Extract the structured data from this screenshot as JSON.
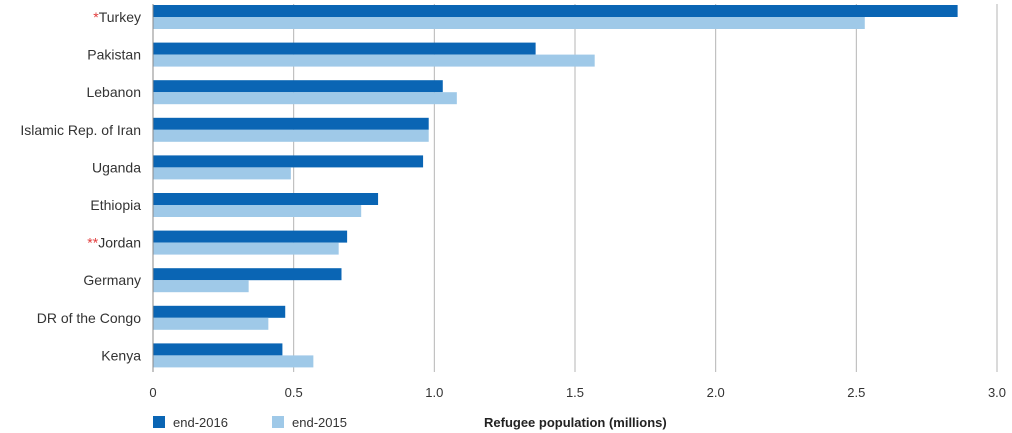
{
  "chart_data": {
    "type": "bar",
    "orientation": "horizontal",
    "categories": [
      {
        "mark": "*",
        "name": "Turkey"
      },
      {
        "mark": "",
        "name": "Pakistan"
      },
      {
        "mark": "",
        "name": "Lebanon"
      },
      {
        "mark": "",
        "name": "Islamic Rep. of Iran"
      },
      {
        "mark": "",
        "name": "Uganda"
      },
      {
        "mark": "",
        "name": "Ethiopia"
      },
      {
        "mark": "**",
        "name": "Jordan"
      },
      {
        "mark": "",
        "name": "Germany"
      },
      {
        "mark": "",
        "name": "DR of the Congo"
      },
      {
        "mark": "",
        "name": "Kenya"
      }
    ],
    "series": [
      {
        "name": "end-2016",
        "color": "#0a65b4",
        "values": [
          2.86,
          1.36,
          1.03,
          0.98,
          0.96,
          0.8,
          0.69,
          0.67,
          0.47,
          0.46
        ]
      },
      {
        "name": "end-2015",
        "color": "#9fc9e8",
        "values": [
          2.53,
          1.57,
          1.08,
          0.98,
          0.49,
          0.74,
          0.66,
          0.34,
          0.41,
          0.57
        ]
      }
    ],
    "xlim": [
      0,
      3.0
    ],
    "xticks": [
      "0",
      "0.5",
      "1.0",
      "1.5",
      "2.0",
      "2.5",
      "3.0"
    ],
    "xtick_values": [
      0,
      0.5,
      1.0,
      1.5,
      2.0,
      2.5,
      3.0
    ],
    "xlabel": "Refugee population (millions)",
    "ylabel": "",
    "title": "",
    "grid": "vertical",
    "legend_position": "bottom-left",
    "mark_color": "#e23b3b",
    "grid_color": "#b5b5b5"
  }
}
